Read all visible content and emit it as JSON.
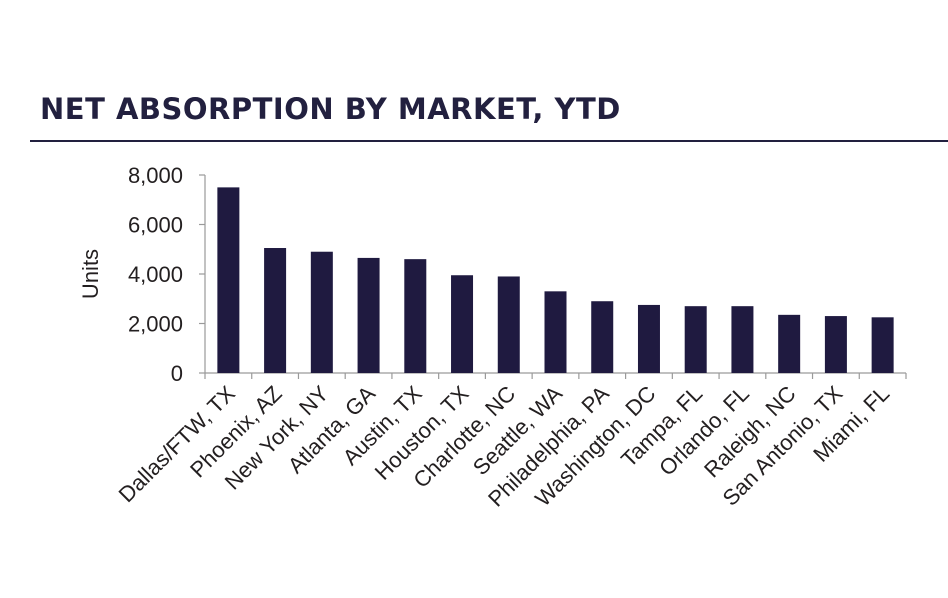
{
  "chart_data": {
    "type": "bar",
    "title": "NET ABSORPTION BY MARKET, YTD",
    "ylabel": "Units",
    "xlabel": "",
    "ylim": [
      0,
      8000
    ],
    "yticks": [
      "0",
      "2,000",
      "4,000",
      "6,000",
      "8,000"
    ],
    "grid": false,
    "categories": [
      "Dallas/FTW, TX",
      "Phoenix, AZ",
      "New York, NY",
      "Atlanta, GA",
      "Austin, TX",
      "Houston, TX",
      "Charlotte, NC",
      "Seattle, WA",
      "Philadelphia, PA",
      "Washington, DC",
      "Tampa, FL",
      "Orlando, FL",
      "Raleigh, NC",
      "San Antonio, TX",
      "Miami, FL"
    ],
    "values": [
      7500,
      5050,
      4900,
      4650,
      4600,
      3950,
      3900,
      3300,
      2900,
      2750,
      2700,
      2700,
      2350,
      2300,
      2250
    ],
    "colors": {
      "bar": "#1f1a40",
      "title": "#22203f",
      "axis": "#9a9a9a"
    }
  }
}
